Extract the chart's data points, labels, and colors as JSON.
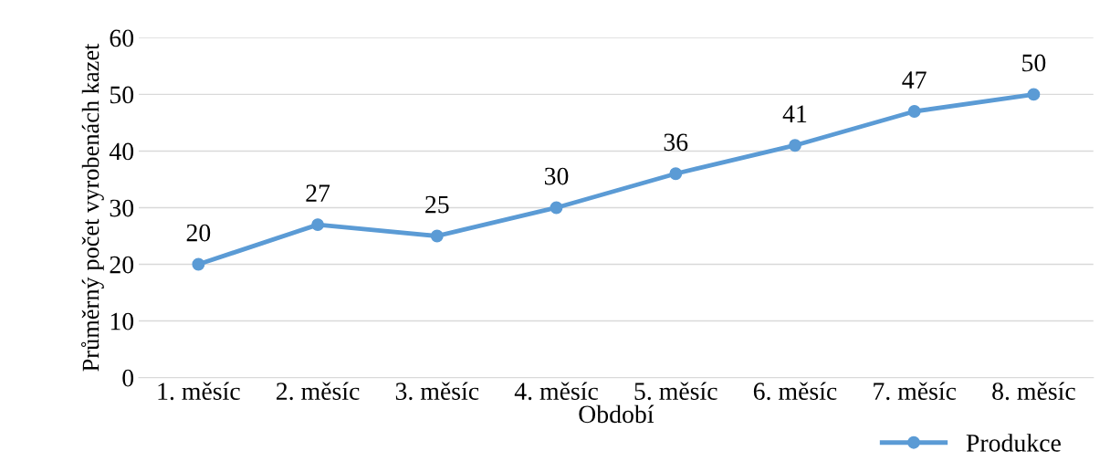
{
  "chart_data": {
    "type": "line",
    "xlabel": "Období",
    "ylabel": "Průměrný počet vyrobenách kazet",
    "categories": [
      "1. měsíc",
      "2. měsíc",
      "3. měsíc",
      "4. měsíc",
      "5. měsíc",
      "6. měsíc",
      "7. měsíc",
      "8. měsíc"
    ],
    "series": [
      {
        "name": "Produkce",
        "color": "#5b9bd5",
        "values": [
          20,
          27,
          25,
          30,
          36,
          41,
          47,
          50
        ]
      }
    ],
    "ylim": [
      0,
      60
    ],
    "yticks": [
      0,
      10,
      20,
      30,
      40,
      50,
      60
    ],
    "grid": "y",
    "legend": "bottom right",
    "marker": "circle",
    "line_style": "solid",
    "data_labels": true
  }
}
